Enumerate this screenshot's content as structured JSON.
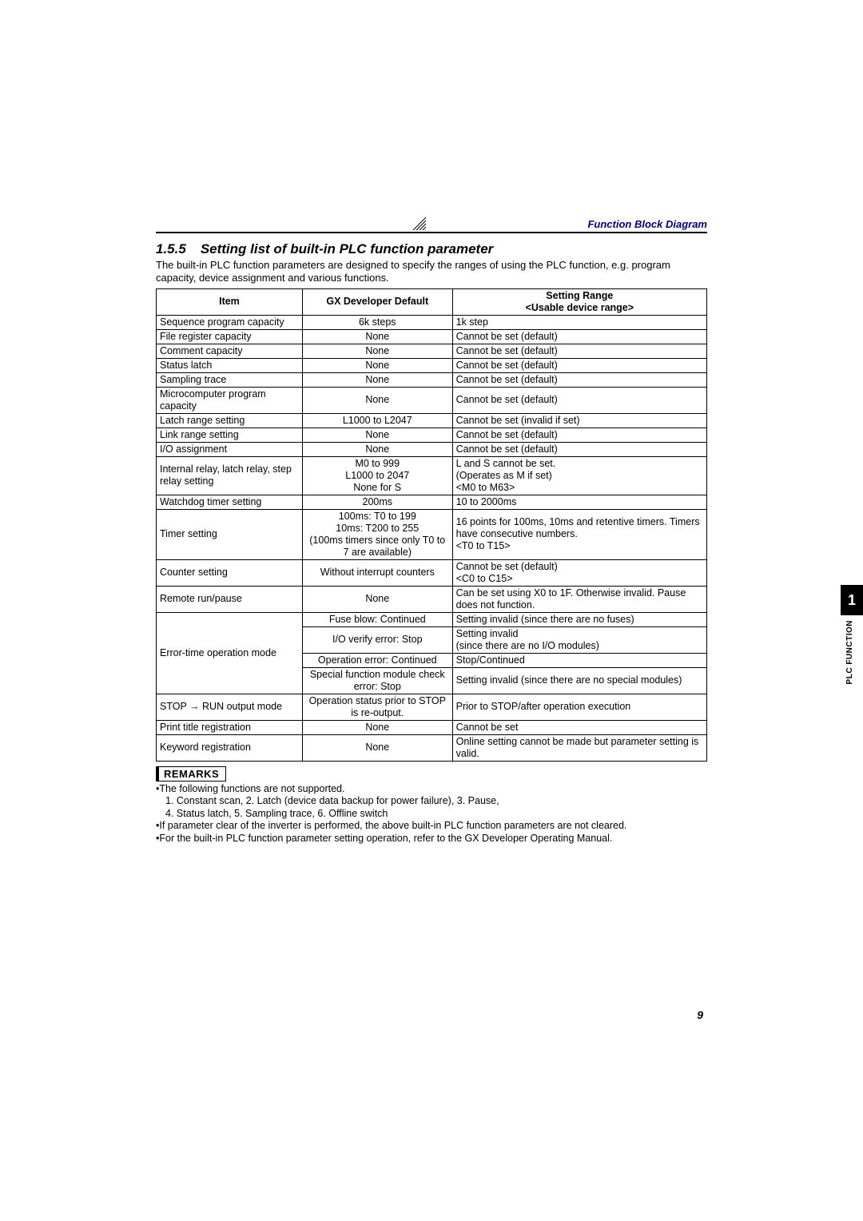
{
  "header": {
    "title": "Function Block Diagram"
  },
  "section": {
    "num": "1.5.5",
    "title": "Setting list of built-in PLC function parameter",
    "intro": "The built-in PLC function parameters are designed to specify the ranges of using the PLC function, e.g. program capacity, device assignment and various functions."
  },
  "table": {
    "columns": [
      "Item",
      "GX Developer Default",
      "Setting Range\n<Usable device range>"
    ],
    "rows": [
      [
        "Sequence program capacity",
        "6k steps",
        "1k step"
      ],
      [
        "File register capacity",
        "None",
        "Cannot be set (default)"
      ],
      [
        "Comment capacity",
        "None",
        "Cannot be set (default)"
      ],
      [
        "Status latch",
        "None",
        "Cannot be set (default)"
      ],
      [
        "Sampling trace",
        "None",
        "Cannot be set (default)"
      ],
      [
        "Microcomputer program capacity",
        "None",
        "Cannot be set (default)"
      ],
      [
        "Latch range setting",
        "L1000 to L2047",
        "Cannot be set (invalid if set)"
      ],
      [
        "Link range setting",
        "None",
        "Cannot be set (default)"
      ],
      [
        "I/O assignment",
        "None",
        "Cannot be set (default)"
      ],
      [
        "Internal relay, latch relay, step relay setting",
        "M0 to 999\nL1000 to 2047\nNone for S",
        "L and S cannot be set.\n(Operates as M if set)\n<M0 to M63>"
      ],
      [
        "Watchdog timer setting",
        "200ms",
        "10 to 2000ms"
      ],
      [
        "Timer setting",
        "100ms: T0 to 199\n10ms: T200 to 255\n(100ms timers since only T0 to 7 are available)",
        "16 points for 100ms, 10ms and retentive timers. Timers have consecutive numbers.\n<T0 to T15>"
      ],
      [
        "Counter setting",
        "Without interrupt counters",
        "Cannot be set (default)\n<C0 to C15>"
      ],
      [
        "Remote run/pause",
        "None",
        "Can be set using X0 to 1F. Otherwise invalid. Pause does not function."
      ]
    ],
    "error_time": {
      "item": "Error-time operation mode",
      "subrows": [
        [
          "Fuse blow: Continued",
          "Setting invalid (since there are no fuses)"
        ],
        [
          "I/O verify error: Stop",
          "Setting invalid\n(since there are no I/O modules)"
        ],
        [
          "Operation error: Continued",
          "Stop/Continued"
        ],
        [
          "Special function module check error: Stop",
          "Setting invalid (since there are no special modules)"
        ]
      ]
    },
    "tail": [
      [
        "STOP → RUN output mode",
        "Operation status prior to STOP is re-output.",
        "Prior to STOP/after operation execution"
      ],
      [
        "Print title registration",
        "None",
        "Cannot be set"
      ],
      [
        "Keyword registration",
        "None",
        "Online setting cannot be made but parameter setting is valid."
      ]
    ]
  },
  "remarks": {
    "label": "REMARKS",
    "lines": [
      "•The following functions are not supported.",
      "  1. Constant scan, 2. Latch (device data backup for power failure), 3. Pause,",
      "  4. Status latch, 5. Sampling trace, 6. Offline switch",
      "•If parameter clear of the inverter is performed, the above built-in PLC function parameters are not cleared.",
      "•For the built-in PLC function parameter setting operation, refer to the GX Developer Operating Manual."
    ]
  },
  "sidetab": {
    "num": "1",
    "label": "PLC FUNCTION"
  },
  "pagenum": "9"
}
